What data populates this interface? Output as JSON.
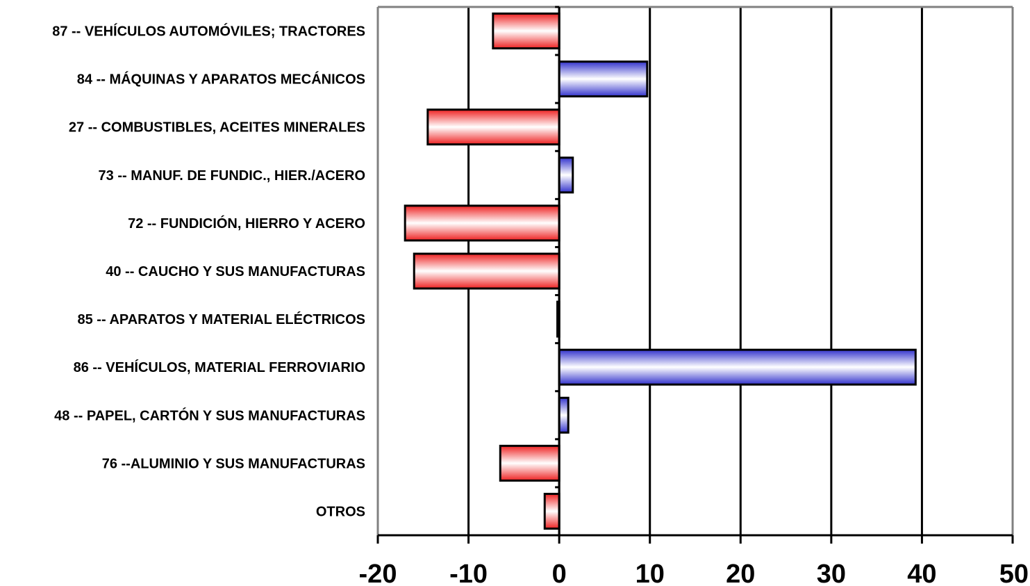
{
  "chart_data": {
    "type": "bar",
    "orientation": "horizontal",
    "title": "",
    "xlabel": "",
    "ylabel": "",
    "categories": [
      "87 -- VEHÍCULOS AUTOMÓVILES; TRACTORES",
      "84 -- MÁQUINAS Y APARATOS MECÁNICOS",
      "27 -- COMBUSTIBLES, ACEITES MINERALES",
      "73 -- MANUF. DE FUNDIC., HIER./ACERO",
      "72 -- FUNDICIÓN, HIERRO Y ACERO",
      "40 -- CAUCHO Y SUS MANUFACTURAS",
      "85 -- APARATOS Y MATERIAL ELÉCTRICOS",
      "86 -- VEHÍCULOS, MATERIAL FERROVIARIO",
      "48 -- PAPEL, CARTÓN Y SUS MANUFACTURAS",
      "76 --ALUMINIO Y SUS MANUFACTURAS",
      "OTROS"
    ],
    "values": [
      -7.3,
      9.7,
      -14.5,
      1.5,
      -17.0,
      -16.0,
      -0.2,
      39.3,
      1.0,
      -6.5,
      -1.6
    ],
    "xlim": [
      -20,
      50
    ],
    "xticks": [
      -20,
      -10,
      0,
      10,
      20,
      30,
      40,
      50
    ],
    "grid": true,
    "legend": "none",
    "colors": {
      "positive": "#3333cc",
      "negative": "#ee2222",
      "gridline": "#000000",
      "frame": "#808080"
    }
  }
}
